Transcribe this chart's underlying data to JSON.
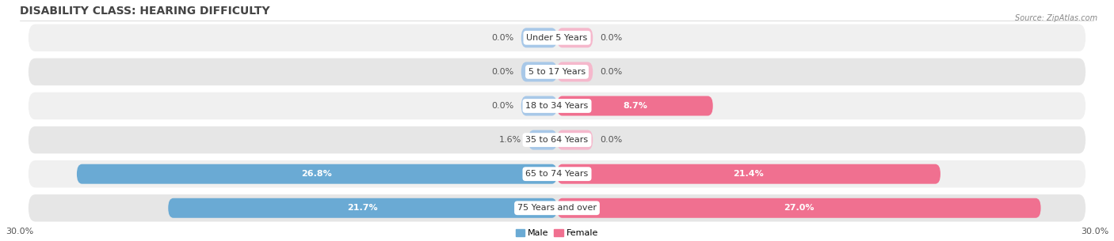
{
  "title": "DISABILITY CLASS: HEARING DIFFICULTY",
  "source": "Source: ZipAtlas.com",
  "categories": [
    "Under 5 Years",
    "5 to 17 Years",
    "18 to 34 Years",
    "35 to 64 Years",
    "65 to 74 Years",
    "75 Years and over"
  ],
  "male_values": [
    0.0,
    0.0,
    0.0,
    1.6,
    26.8,
    21.7
  ],
  "female_values": [
    0.0,
    0.0,
    8.7,
    0.0,
    21.4,
    27.0
  ],
  "male_color_light": "#a8c8e8",
  "male_color_dark": "#6aaad4",
  "female_color_light": "#f5b8cc",
  "female_color_dark": "#f07090",
  "row_bg_odd": "#f0f0f0",
  "row_bg_even": "#e6e6e6",
  "max_val": 30.0,
  "title_fontsize": 10,
  "label_fontsize": 8,
  "val_fontsize": 8,
  "tick_fontsize": 8,
  "stub_val": 2.0
}
